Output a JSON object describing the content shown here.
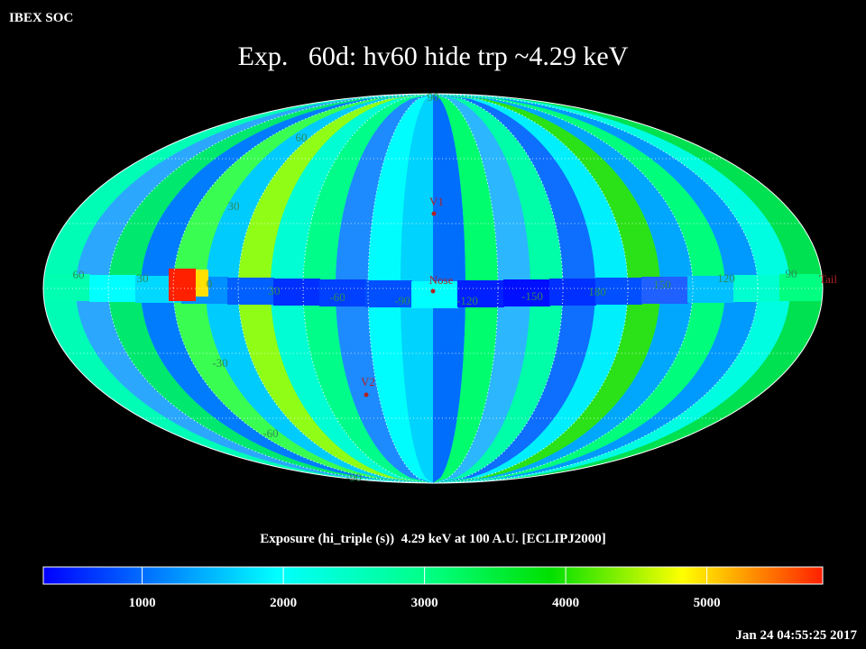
{
  "header": {
    "source": "IBEX SOC",
    "title": "Exp.   60d: hv60 hide trp ~4.29 keV"
  },
  "map": {
    "longitude_labels": [
      "60",
      "30",
      "0",
      "30",
      "-60",
      "-90",
      "-120",
      "-150",
      "180",
      "150",
      "120",
      "90"
    ],
    "latitude_labels": [
      "90",
      "60",
      "30",
      "-30",
      "-60",
      "-90"
    ],
    "markers": [
      "V1",
      "Nose",
      "V2",
      "Tail"
    ]
  },
  "colorbar": {
    "title": "Exposure (hi_triple (s))  4.29 keV at 100 A.U. [ECLIPJ2000]",
    "lim": [
      300,
      5820
    ],
    "ticks": [
      1000,
      2000,
      3000,
      4000,
      5000
    ]
  },
  "footer": {
    "timestamp": "Jan 24 04:55:25 2017"
  }
}
